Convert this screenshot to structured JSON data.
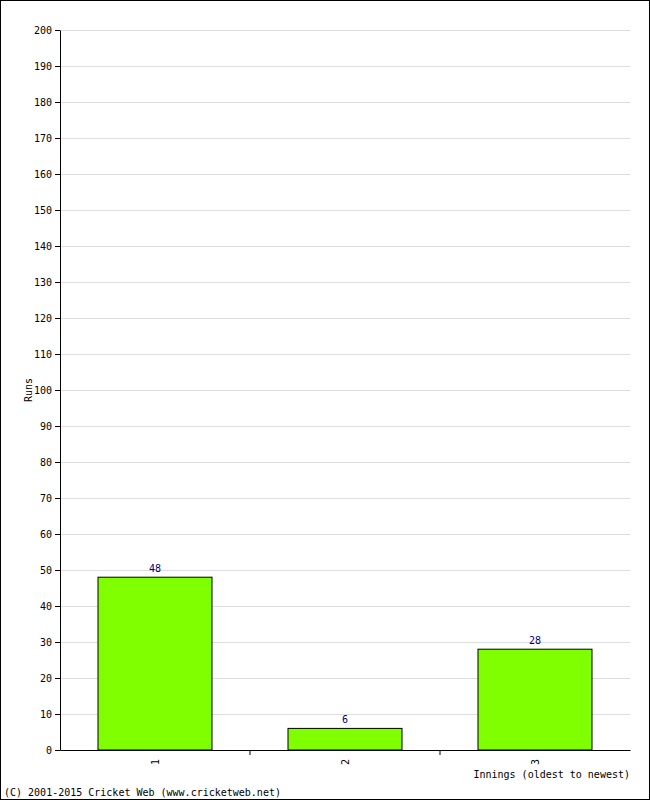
{
  "chart_data": {
    "type": "bar",
    "y_label": "Runs",
    "x_label": "Innings (oldest to newest)",
    "annotations": [
      "(C) 2001-2015 Cricket Web (www.cricketweb.net)"
    ],
    "categories": [
      "1",
      "2",
      "3"
    ],
    "values": [
      48,
      6,
      28
    ],
    "color": "#80ff00",
    "ylim": [
      0,
      200
    ],
    "yticks": [
      0,
      10,
      20,
      30,
      40,
      50,
      60,
      70,
      80,
      90,
      100,
      110,
      120,
      130,
      140,
      150,
      160,
      170,
      180,
      190,
      200
    ],
    "grid": true,
    "data_labels": true
  }
}
